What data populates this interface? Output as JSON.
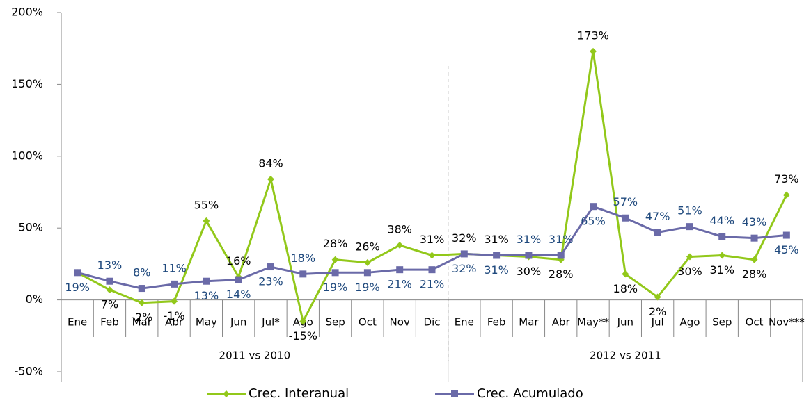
{
  "chart_data": {
    "type": "line",
    "categories": [
      "Ene",
      "Feb",
      "Mar",
      "Abr",
      "May",
      "Jun",
      "Jul*",
      "Ago",
      "Sep",
      "Oct",
      "Nov",
      "Dic",
      "Ene",
      "Feb",
      "Mar",
      "Abr",
      "May**",
      "Jun",
      "Jul",
      "Ago",
      "Sep",
      "Oct",
      "Nov***"
    ],
    "category_groups": [
      "2011 vs 2010",
      "2012 vs 2011"
    ],
    "series": [
      {
        "name": "Crec. Interanual",
        "color": "#92c81a",
        "values": [
          19,
          7,
          -2,
          -1,
          55,
          16,
          84,
          -15,
          28,
          26,
          38,
          31,
          32,
          31,
          30,
          28,
          173,
          18,
          2,
          30,
          31,
          28,
          73
        ],
        "value_labels": [
          null,
          "7%",
          "-2%",
          "-1%",
          "55%",
          "16%",
          "84%",
          "-15%",
          "28%",
          "26%",
          "38%",
          "31%",
          "32%",
          "31%",
          "30%",
          "28%",
          "173%",
          "18%",
          "2%",
          "30%",
          "31%",
          "28%",
          "73%"
        ]
      },
      {
        "name": "Crec. Acumulado",
        "color": "#6a6aa8",
        "values": [
          19,
          13,
          8,
          11,
          13,
          14,
          23,
          18,
          19,
          19,
          21,
          21,
          32,
          31,
          31,
          31,
          65,
          57,
          47,
          51,
          44,
          43,
          45
        ],
        "value_labels": [
          "19%",
          "13%",
          "8%",
          "11%",
          "13%",
          "14%",
          "23%",
          "18%",
          "19%",
          "19%",
          "21%",
          "21%",
          "32%",
          "31%",
          "31%",
          "31%",
          "65%",
          "57%",
          "47%",
          "51%",
          "44%",
          "43%",
          "45%"
        ]
      }
    ],
    "ylim": [
      -50,
      200
    ],
    "yticks": [
      {
        "value": -50,
        "label": "-50%"
      },
      {
        "value": 0,
        "label": "0%"
      },
      {
        "value": 50,
        "label": "50%"
      },
      {
        "value": 100,
        "label": "100%"
      },
      {
        "value": 150,
        "label": "150%"
      },
      {
        "value": 200,
        "label": "200%"
      }
    ],
    "grid": false,
    "legend": "bottom"
  }
}
